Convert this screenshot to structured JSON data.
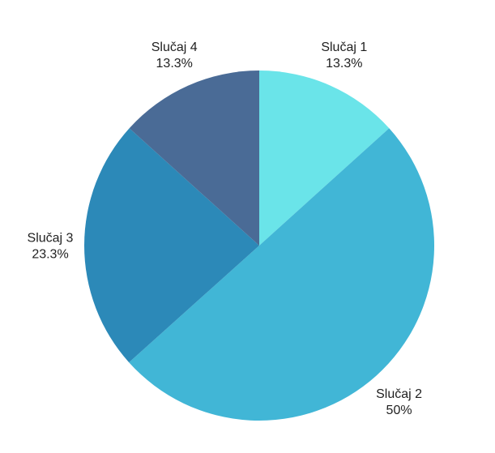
{
  "chart_data": {
    "type": "pie",
    "start_angle_deg": 0,
    "direction": "clockwise",
    "slices": [
      {
        "label": "Slučaj 1",
        "value": 13.3,
        "value_label": "13.3%",
        "color": "#6ae4e9"
      },
      {
        "label": "Slučaj 2",
        "value": 50.0,
        "value_label": "50%",
        "color": "#41b6d6"
      },
      {
        "label": "Slučaj 3",
        "value": 23.3,
        "value_label": "23.3%",
        "color": "#2c89b8"
      },
      {
        "label": "Slučaj 4",
        "value": 13.3,
        "value_label": "13.3%",
        "color": "#4a6b96"
      }
    ],
    "legend": "none",
    "data_labels": "outside"
  }
}
